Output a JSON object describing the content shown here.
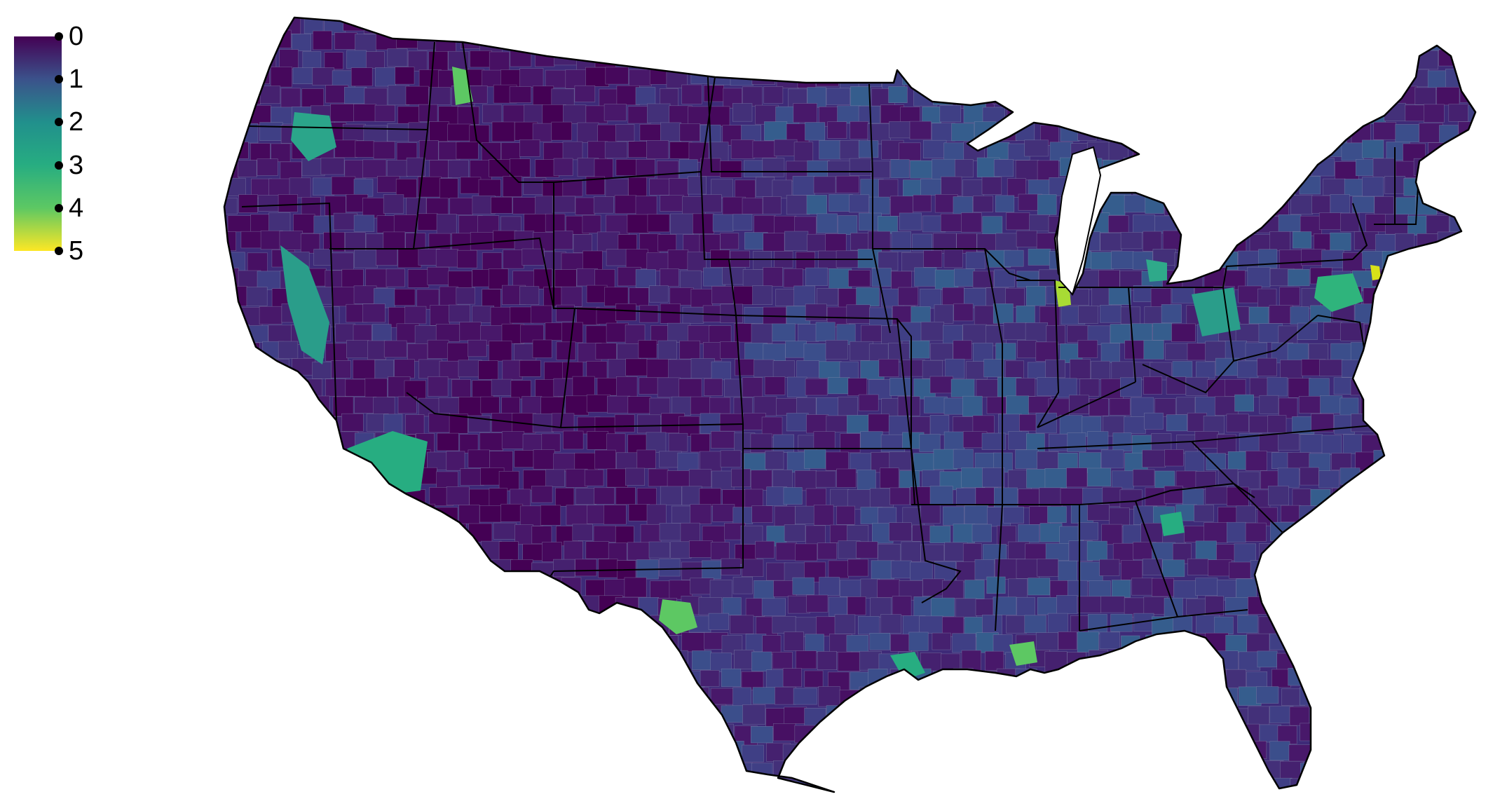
{
  "legend": {
    "ticks": [
      "0",
      "1",
      "2",
      "3",
      "4",
      "5"
    ],
    "scale_min": 0,
    "scale_max": 5,
    "colors": [
      "#440154",
      "#3b528b",
      "#21908c",
      "#27ad81",
      "#5dc863",
      "#fde725"
    ]
  },
  "map": {
    "region": "contiguous-united-states",
    "geography": "county-choropleth",
    "outline_color": "#000000",
    "county_border_color": "#8a8fb0",
    "hotspot_colors": [
      "#5dc863",
      "#a8db34",
      "#d8e219"
    ]
  }
}
